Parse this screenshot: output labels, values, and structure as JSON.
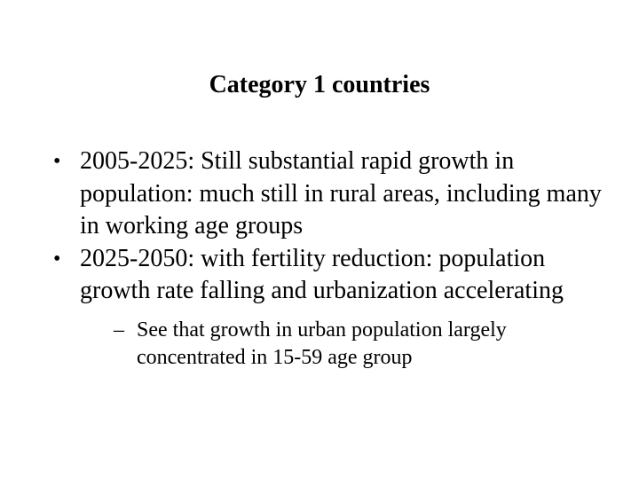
{
  "slide": {
    "title": "Category 1 countries",
    "bullets": [
      {
        "marker": "•",
        "text": "2005-2025: Still substantial rapid growth in population: much still in rural areas, including many in working age groups"
      },
      {
        "marker": "•",
        "text": "2025-2050: with fertility reduction: population growth rate falling and urbanization accelerating",
        "sub_bullets": [
          {
            "marker": "–",
            "text": "See that growth in urban population largely concentrated in 15-59 age group"
          }
        ]
      }
    ]
  }
}
